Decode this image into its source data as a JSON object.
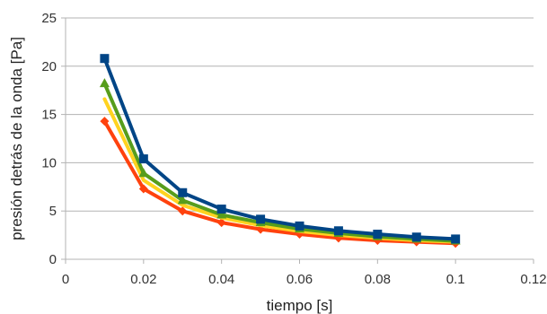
{
  "chart_data": {
    "type": "line",
    "title": "",
    "xlabel": "tiempo [s]",
    "ylabel": "presión detrás de la onda [Pa]",
    "xlim": [
      0,
      0.12
    ],
    "ylim": [
      0,
      25
    ],
    "x_ticks": [
      0,
      0.02,
      0.04,
      0.06,
      0.08,
      0.1,
      0.12
    ],
    "x_tick_labels": [
      "0",
      "0.02",
      "0.04",
      "0.06",
      "0.08",
      "0.1",
      "0.12"
    ],
    "y_ticks": [
      0,
      5,
      10,
      15,
      20,
      25
    ],
    "y_tick_labels": [
      "0",
      "5",
      "10",
      "15",
      "20",
      "25"
    ],
    "grid": "horizontal",
    "legend": "none",
    "x": [
      0.01,
      0.02,
      0.03,
      0.04,
      0.05,
      0.06,
      0.07,
      0.08,
      0.09,
      0.1
    ],
    "series": [
      {
        "color": "#ff420e",
        "marker": "diamond",
        "values": [
          14.3,
          7.3,
          5.0,
          3.8,
          3.1,
          2.6,
          2.2,
          1.95,
          1.8,
          1.65
        ]
      },
      {
        "color": "#ffd320",
        "marker": "none",
        "values": [
          16.6,
          8.2,
          5.6,
          4.3,
          3.5,
          2.9,
          2.5,
          2.2,
          1.95,
          1.8
        ]
      },
      {
        "color": "#579d1c",
        "marker": "triangle",
        "values": [
          18.2,
          8.9,
          6.1,
          4.6,
          3.8,
          3.15,
          2.7,
          2.35,
          2.1,
          1.9
        ]
      },
      {
        "color": "#004586",
        "marker": "square",
        "values": [
          20.8,
          10.4,
          6.9,
          5.2,
          4.15,
          3.45,
          2.95,
          2.6,
          2.3,
          2.1
        ]
      }
    ]
  }
}
